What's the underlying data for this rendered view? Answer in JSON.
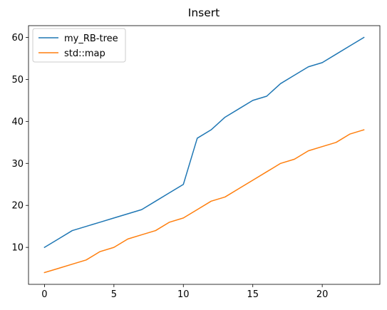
{
  "chart_data": {
    "type": "line",
    "title": "Insert",
    "xlabel": "",
    "ylabel": "",
    "xlim": [
      -1.15,
      24.15
    ],
    "ylim": [
      1.2,
      62.8
    ],
    "xticks": [
      0,
      5,
      10,
      15,
      20
    ],
    "yticks": [
      10,
      20,
      30,
      40,
      50,
      60
    ],
    "grid": false,
    "legend_position": "upper left",
    "x": [
      0,
      1,
      2,
      3,
      4,
      5,
      6,
      7,
      8,
      9,
      10,
      11,
      12,
      13,
      14,
      15,
      16,
      17,
      18,
      19,
      20,
      21,
      22,
      23
    ],
    "series": [
      {
        "name": "my_RB-tree",
        "color": "#1f77b4",
        "values": [
          10,
          12,
          14,
          15,
          16,
          17,
          18,
          19,
          21,
          23,
          25,
          36,
          38,
          41,
          43,
          45,
          46,
          49,
          51,
          53,
          54,
          56,
          58,
          60
        ]
      },
      {
        "name": "std::map",
        "color": "#ff7f0e",
        "values": [
          4,
          5,
          6,
          7,
          9,
          10,
          12,
          13,
          14,
          16,
          17,
          19,
          21,
          22,
          24,
          26,
          28,
          30,
          31,
          33,
          34,
          35,
          37,
          38
        ]
      }
    ]
  }
}
